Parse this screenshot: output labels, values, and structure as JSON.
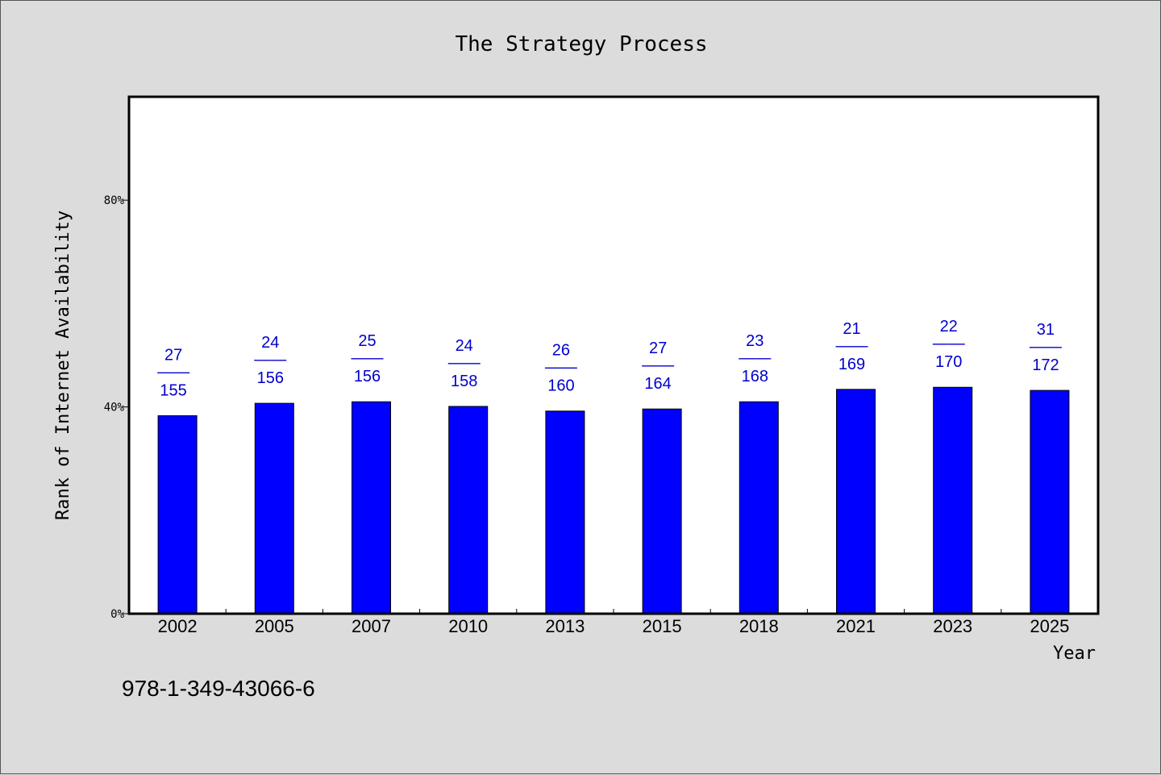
{
  "chart_data": {
    "type": "bar",
    "title": "The Strategy Process",
    "xlabel": "Year",
    "ylabel": "Rank of Internet Availability",
    "categories": [
      "2002",
      "2005",
      "2007",
      "2010",
      "2013",
      "2015",
      "2018",
      "2021",
      "2023",
      "2025"
    ],
    "values": [
      38.3,
      40.7,
      41.0,
      40.1,
      39.2,
      39.6,
      41.0,
      43.4,
      43.8,
      43.2
    ],
    "bar_labels": [
      {
        "top": "27",
        "sep": "——",
        "bottom": "155"
      },
      {
        "top": "24",
        "sep": "——",
        "bottom": "156"
      },
      {
        "top": "25",
        "sep": "——",
        "bottom": "156"
      },
      {
        "top": "24",
        "sep": "——",
        "bottom": "158"
      },
      {
        "top": "26",
        "sep": "——",
        "bottom": "160"
      },
      {
        "top": "27",
        "sep": "——",
        "bottom": "164"
      },
      {
        "top": "23",
        "sep": "——",
        "bottom": "168"
      },
      {
        "top": "21",
        "sep": "——",
        "bottom": "169"
      },
      {
        "top": "22",
        "sep": "——",
        "bottom": "170"
      },
      {
        "top": "31",
        "sep": "——",
        "bottom": "172"
      }
    ],
    "ylim": [
      0,
      100
    ],
    "yticks": [
      0,
      40,
      80
    ],
    "ytick_labels": [
      "0%",
      "40%",
      "80%"
    ],
    "grid": false,
    "colors": {
      "bar": "#0000ff",
      "label": "#0000cc",
      "background": "#dcdcdc",
      "plot_area": "#ffffff"
    }
  },
  "footer": {
    "isbn": "978-1-349-43066-6"
  }
}
